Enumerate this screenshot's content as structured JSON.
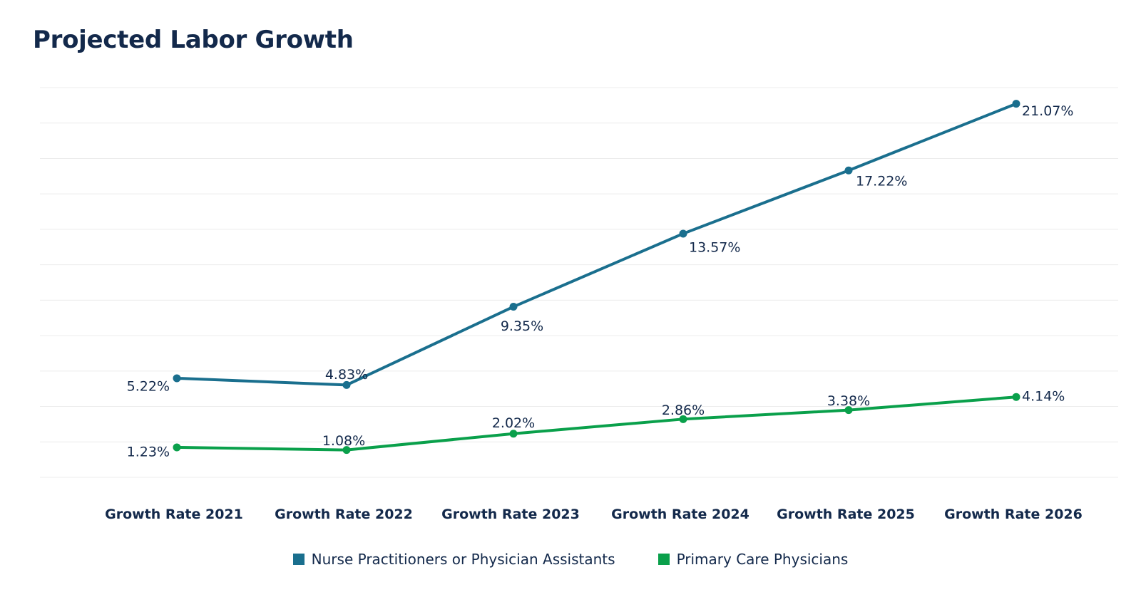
{
  "chart_data": {
    "type": "line",
    "title": "Projected Labor Growth",
    "categories": [
      "Growth Rate 2021",
      "Growth Rate 2022",
      "Growth Rate 2023",
      "Growth Rate 2024",
      "Growth Rate 2025",
      "Growth Rate 2026"
    ],
    "series": [
      {
        "name": "Nurse Practitioners or Physician Assistants",
        "values": [
          5.22,
          4.83,
          9.35,
          13.57,
          17.22,
          21.07
        ],
        "labels": [
          "5.22%",
          "4.83%",
          "9.35%",
          "13.57%",
          "17.22%",
          "21.07%"
        ],
        "color": "#1a6f8e"
      },
      {
        "name": "Primary Care Physicians",
        "values": [
          1.23,
          1.08,
          2.02,
          2.86,
          3.38,
          4.14
        ],
        "labels": [
          "1.23%",
          "1.08%",
          "2.02%",
          "2.86%",
          "3.38%",
          "4.14%"
        ],
        "color": "#0aa04b"
      }
    ],
    "xlabel": "",
    "ylabel": "",
    "ylim": [
      -0.5,
      22
    ],
    "grid": true,
    "y_axis_labels_visible": false,
    "legend_position": "bottom-center"
  }
}
